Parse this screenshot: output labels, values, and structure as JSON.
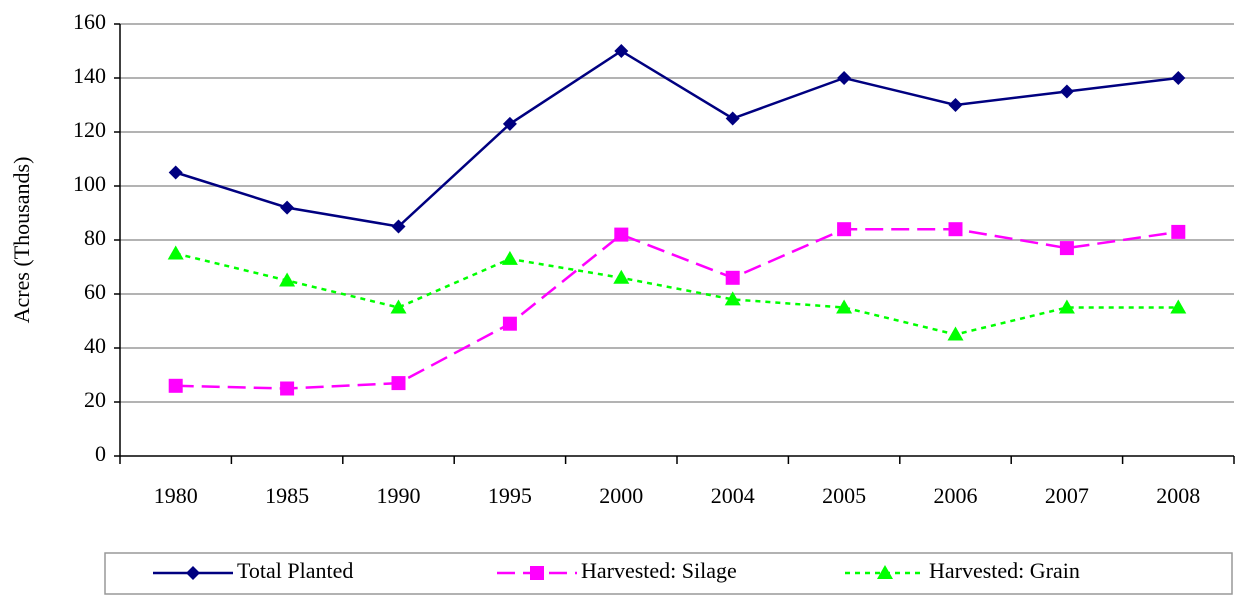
{
  "chart_data": {
    "type": "line",
    "ylabel": "Acres (Thousands)",
    "categories": [
      "1980",
      "1985",
      "1990",
      "1995",
      "2000",
      "2004",
      "2005",
      "2006",
      "2007",
      "2008"
    ],
    "series": [
      {
        "name": "Total Planted",
        "color": "#000080",
        "marker": "diamond",
        "dash": "solid",
        "values": [
          105,
          92,
          85,
          123,
          150,
          125,
          140,
          130,
          135,
          140
        ]
      },
      {
        "name": "Harvested: Silage",
        "color": "#ff00ff",
        "marker": "square",
        "dash": "dashed",
        "values": [
          26,
          25,
          27,
          49,
          82,
          66,
          84,
          84,
          77,
          83
        ]
      },
      {
        "name": "Harvested: Grain",
        "color": "#00ff00",
        "marker": "triangle",
        "dash": "dotted",
        "values": [
          75,
          65,
          55,
          73,
          66,
          58,
          55,
          45,
          55,
          55
        ]
      }
    ],
    "ylim": [
      0,
      160
    ],
    "yticks": [
      0,
      20,
      40,
      60,
      80,
      100,
      120,
      140,
      160
    ],
    "grid": true,
    "legend": "bottom"
  }
}
